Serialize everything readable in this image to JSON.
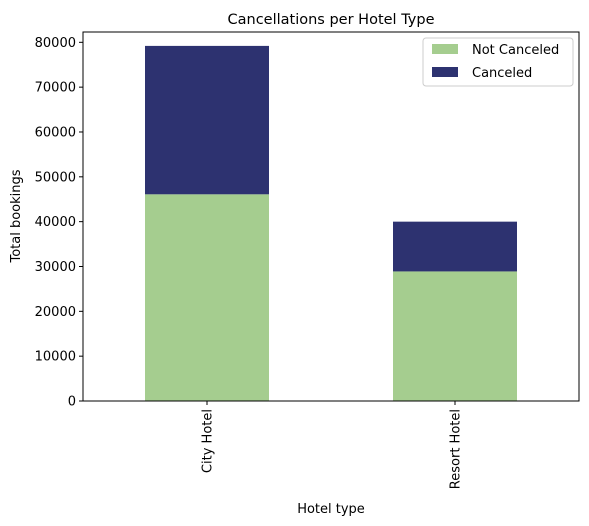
{
  "chart_data": {
    "type": "bar",
    "stacked": true,
    "title": "Cancellations per Hotel Type",
    "xlabel": "Hotel type",
    "ylabel": "Total bookings",
    "categories": [
      "City Hotel",
      "Resort Hotel"
    ],
    "series": [
      {
        "name": "Not Canceled",
        "color": "#a5cd8f",
        "values": [
          46100,
          28900
        ]
      },
      {
        "name": "Canceled",
        "color": "#2d3270",
        "values": [
          33100,
          11100
        ]
      }
    ],
    "ylim": [
      0,
      82300
    ],
    "yticks": [
      0,
      10000,
      20000,
      30000,
      40000,
      50000,
      60000,
      70000,
      80000
    ],
    "ytick_labels": [
      "0",
      "10000",
      "20000",
      "30000",
      "40000",
      "50000",
      "60000",
      "70000",
      "80000"
    ],
    "grid": false,
    "legend_position": "top-right"
  }
}
